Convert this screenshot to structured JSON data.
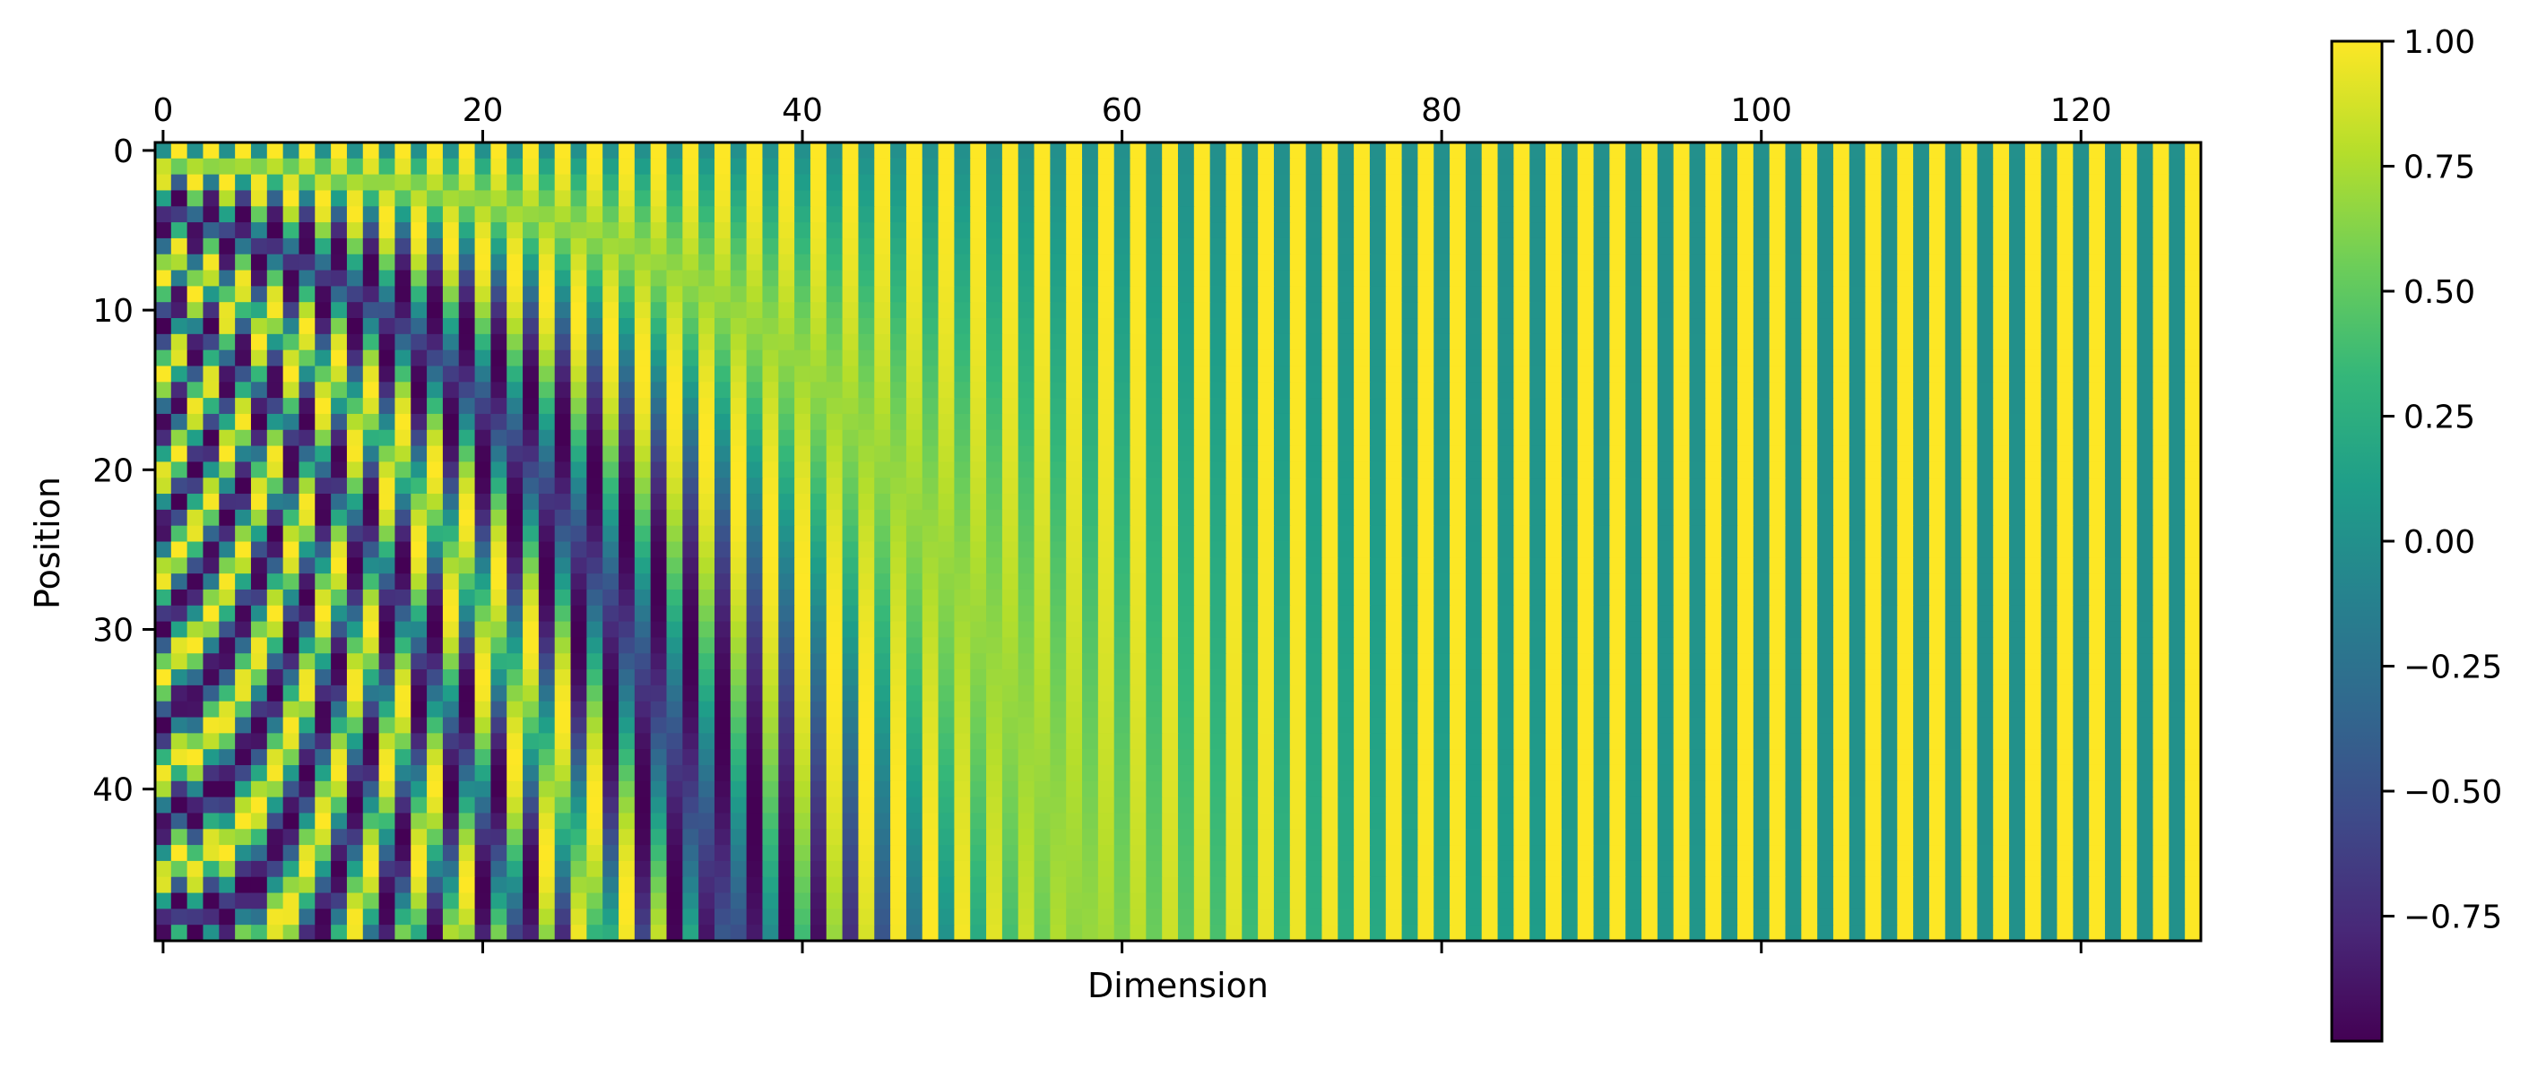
{
  "chart_data": {
    "type": "heatmap",
    "title": "",
    "xlabel": "Dimension",
    "ylabel": "Position",
    "rows": 50,
    "cols": 128,
    "function": "sinusoidal positional encoding: even dimension d -> sin(pos / 10000^(d/128)), odd dimension d -> cos(pos / 10000^((d-1)/128))",
    "xlim": [
      0,
      127
    ],
    "ylim": [
      0,
      49
    ],
    "x_ticks": [
      0,
      20,
      40,
      60,
      80,
      100,
      120
    ],
    "x_tick_labels": [
      "0",
      "20",
      "40",
      "60",
      "80",
      "100",
      "120"
    ],
    "x_tick_position": "top",
    "y_ticks": [
      0,
      10,
      20,
      30,
      40
    ],
    "y_tick_labels": [
      "0",
      "10",
      "20",
      "30",
      "40"
    ],
    "colormap": "viridis",
    "vmin": -1.0,
    "vmax": 1.0,
    "colorbar": {
      "ticks": [
        1.0,
        0.75,
        0.5,
        0.25,
        0.0,
        -0.25,
        -0.5,
        -0.75
      ],
      "tick_labels": [
        "1.00",
        "0.75",
        "0.50",
        "0.25",
        "0.00",
        "−0.25",
        "−0.50",
        "−0.75"
      ],
      "placement": "right"
    },
    "grid": false
  },
  "colors": {
    "viridis_stops": [
      "#440154",
      "#482878",
      "#3e4a89",
      "#31688e",
      "#26828e",
      "#1f9e89",
      "#35b779",
      "#6ece58",
      "#b5de2b",
      "#fde725"
    ],
    "frame": "#000000"
  }
}
